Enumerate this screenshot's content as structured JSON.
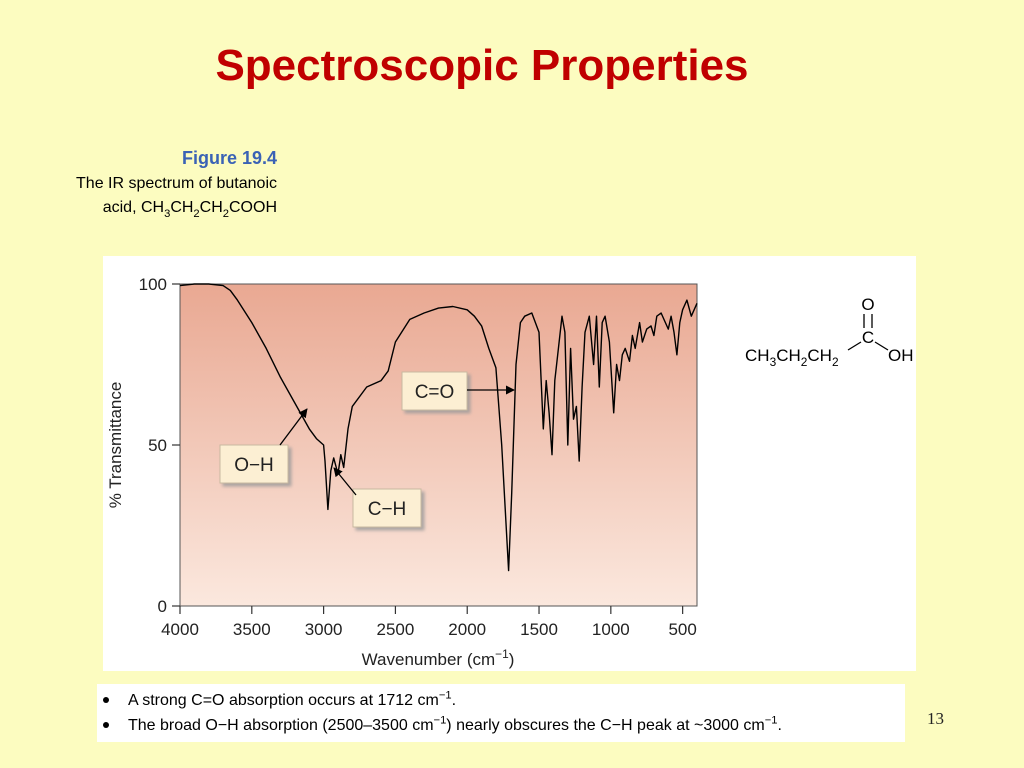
{
  "title": "Spectroscopic Properties",
  "figure": {
    "label": "Figure 19.4",
    "caption_line1": "The IR spectrum of butanoic",
    "caption_line2": [
      "acid, CH",
      "3",
      "CH",
      "2",
      "CH",
      "2",
      "COOH"
    ]
  },
  "chart_data": {
    "type": "line",
    "color": "#000000",
    "ylabel": "% Transmittance",
    "xlabel": [
      "Wavenumber (cm",
      "−1",
      ")"
    ],
    "xlim": [
      4000,
      400
    ],
    "ylim": [
      0,
      100
    ],
    "xticks": [
      4000,
      3500,
      3000,
      2500,
      2000,
      1500,
      1000,
      500
    ],
    "yticks": [
      0,
      50,
      100
    ],
    "x": [
      4000,
      3900,
      3800,
      3700,
      3650,
      3600,
      3500,
      3400,
      3300,
      3200,
      3100,
      3050,
      3000,
      2990,
      2970,
      2950,
      2930,
      2900,
      2880,
      2860,
      2830,
      2800,
      2700,
      2600,
      2550,
      2500,
      2400,
      2300,
      2200,
      2100,
      2000,
      1950,
      1900,
      1850,
      1800,
      1760,
      1712,
      1690,
      1660,
      1630,
      1600,
      1550,
      1500,
      1470,
      1450,
      1430,
      1410,
      1390,
      1370,
      1340,
      1320,
      1300,
      1280,
      1260,
      1240,
      1220,
      1200,
      1180,
      1150,
      1120,
      1100,
      1080,
      1060,
      1040,
      1010,
      980,
      960,
      940,
      920,
      900,
      870,
      850,
      830,
      800,
      780,
      750,
      720,
      700,
      680,
      650,
      620,
      600,
      580,
      560,
      540,
      520,
      500,
      470,
      440,
      400
    ],
    "values": [
      99.5,
      100,
      100,
      99.5,
      98,
      95,
      88,
      80,
      71,
      63,
      55,
      52,
      50,
      45,
      30,
      42,
      46,
      41,
      47,
      43,
      55,
      62,
      68,
      70,
      73,
      82,
      89,
      91,
      92.5,
      93,
      92,
      90,
      87,
      80,
      74,
      50,
      11,
      35,
      75,
      88,
      90,
      91,
      85,
      55,
      70,
      60,
      47,
      70,
      78,
      90,
      85,
      50,
      80,
      58,
      62,
      45,
      68,
      85,
      90,
      75,
      90,
      68,
      88,
      90,
      82,
      60,
      75,
      70,
      78,
      80,
      76,
      84,
      80,
      88,
      82,
      86,
      87,
      84,
      90,
      91,
      88,
      86,
      90,
      85,
      78,
      88,
      92,
      95,
      90,
      94
    ],
    "annotations": [
      "C=O",
      "O−H",
      "C−H"
    ]
  },
  "structure": {
    "chain": [
      "CH",
      "3",
      "CH",
      "2",
      "CH",
      "2"
    ],
    "carbon": "C",
    "oxygen": "O",
    "hydroxyl": "OH"
  },
  "bullets": [
    [
      "A strong C=O absorption occurs at 1712 cm",
      "−1",
      "."
    ],
    [
      "The broad O−H absorption (2500–3500 cm",
      "−1",
      ") nearly obscures the C−H peak at ~3000 cm",
      "−1",
      "."
    ]
  ],
  "page_number": "13"
}
